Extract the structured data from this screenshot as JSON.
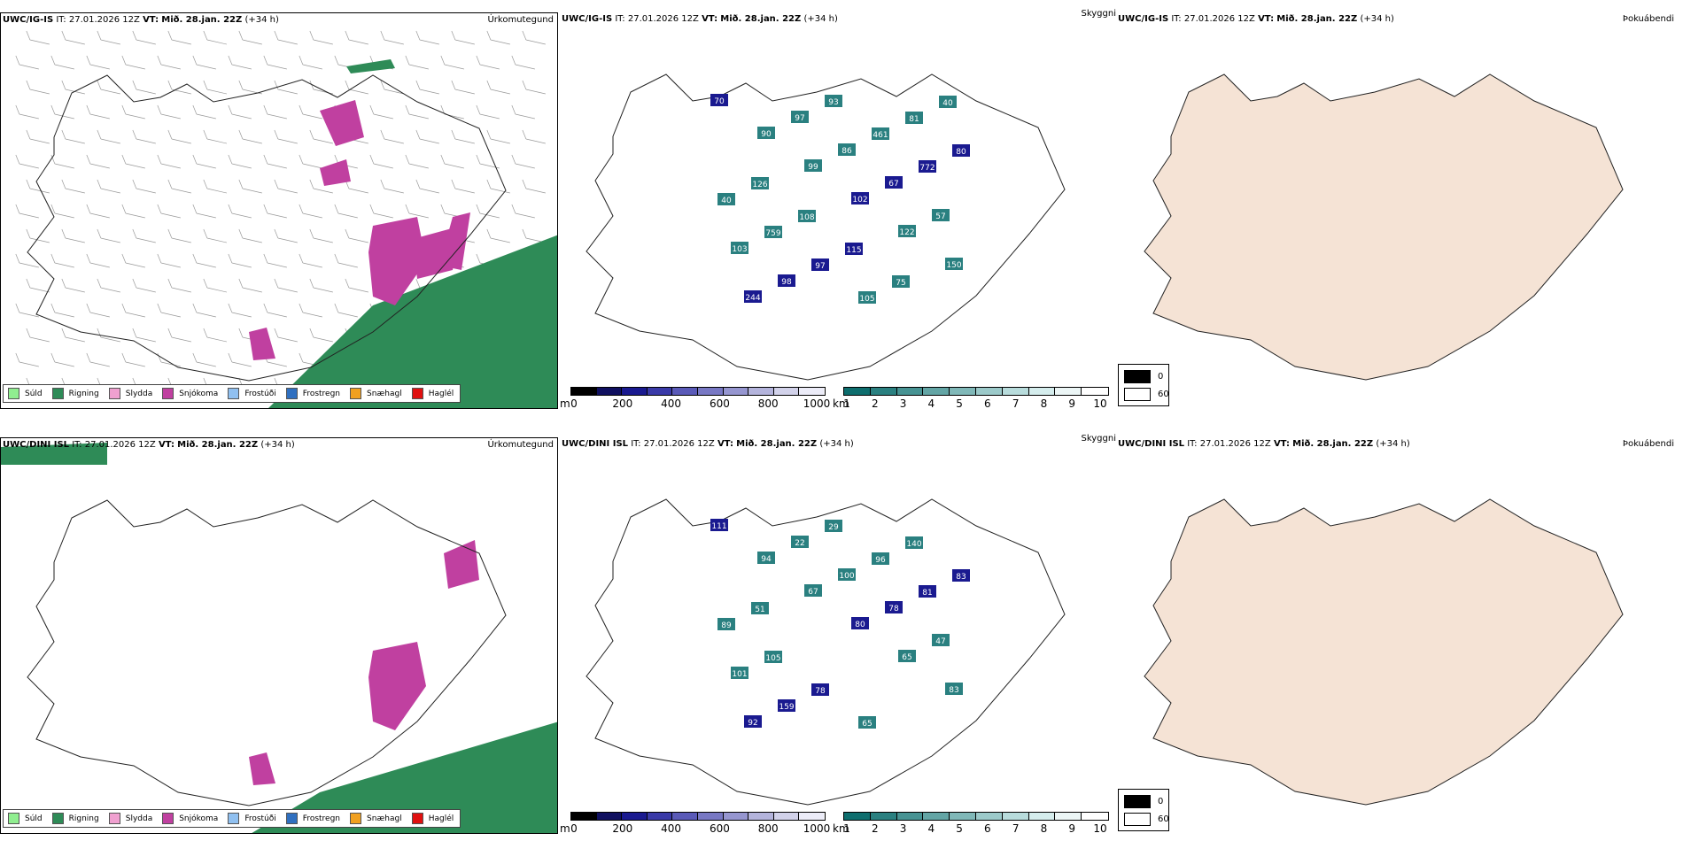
{
  "rows": [
    {
      "model": "UWC/IG-IS",
      "init": "IT: 27.01.2026 12Z",
      "valid_label": "VT:",
      "valid": "Mið. 28.jan. 22Z",
      "lead": "(+34 h)"
    },
    {
      "model": "UWC/DINI ISL",
      "init": "IT: 27.01.2026 12Z",
      "valid_label": "VT:",
      "valid": "Mið. 28.jan. 22Z",
      "lead": "(+34 h)"
    }
  ],
  "panel_titles": {
    "precip": "Úrkomutegund",
    "visibility": "Skyggni",
    "fog": "Þokuábendi"
  },
  "precip_legend": [
    {
      "label": "Súld",
      "color": "#90ee90"
    },
    {
      "label": "Rigning",
      "color": "#2e8b57"
    },
    {
      "label": "Slydda",
      "color": "#f0a0d0"
    },
    {
      "label": "Snjókoma",
      "color": "#c040a0"
    },
    {
      "label": "Frostúði",
      "color": "#90c0f0"
    },
    {
      "label": "Frostregn",
      "color": "#3070c0"
    },
    {
      "label": "Snæhagl",
      "color": "#f0a020"
    },
    {
      "label": "Haglél",
      "color": "#e01010"
    }
  ],
  "snow_bar": {
    "unit": "m",
    "ticks": [
      "0",
      "200",
      "400",
      "600",
      "800",
      "1000"
    ],
    "colors": [
      "#000000",
      "#101060",
      "#1a1a90",
      "#3a3aa8",
      "#5a5ab8",
      "#7878c4",
      "#9696d0",
      "#b4b4dc",
      "#d2d2ea",
      "#ececf8"
    ]
  },
  "vis_bar": {
    "unit": "km",
    "ticks": [
      "1",
      "2",
      "3",
      "4",
      "5",
      "6",
      "7",
      "8",
      "9",
      "10"
    ],
    "colors": [
      "#0e6e6e",
      "#2a8080",
      "#479393",
      "#63a5a5",
      "#80b8b8",
      "#9ccaca",
      "#b8dcdc",
      "#d5eded",
      "#ecf6f6",
      "#ffffff"
    ]
  },
  "fog_legend": [
    {
      "label": "0",
      "color": "#000000"
    },
    {
      "label": "60",
      "color": "#ffffff"
    }
  ],
  "snow_labels_row1": [
    "70",
    "90",
    "99",
    "102",
    "122",
    "150",
    "244",
    "97",
    "86",
    "67",
    "57",
    "103",
    "98",
    "93",
    "461",
    "772",
    "40",
    "759",
    "97",
    "105",
    "81",
    "80",
    "126",
    "108",
    "115",
    "75",
    "40"
  ],
  "snow_labels_row2": [
    "111",
    "94",
    "67",
    "80",
    "65",
    "83",
    "92",
    "22",
    "100",
    "78",
    "47",
    "101",
    "159",
    "29",
    "96",
    "81",
    "89",
    "105",
    "78",
    "65",
    "140",
    "83",
    "51"
  ]
}
